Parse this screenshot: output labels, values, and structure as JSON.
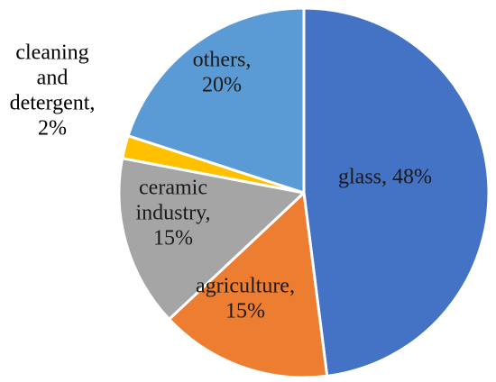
{
  "chart_data": {
    "type": "pie",
    "title": "",
    "start_angle_deg": 0,
    "direction": "clockwise",
    "slices": [
      {
        "label_lines": [
          "glass, 48%"
        ],
        "category": "glass",
        "value": 48,
        "color": "#4472C4"
      },
      {
        "label_lines": [
          "agriculture,",
          "15%"
        ],
        "category": "agriculture",
        "value": 15,
        "color": "#ED7D31"
      },
      {
        "label_lines": [
          "ceramic",
          "industry,",
          "15%"
        ],
        "category": "ceramic industry",
        "value": 15,
        "color": "#A5A5A5"
      },
      {
        "label_lines": [
          "cleaning",
          "and",
          "detergent,",
          "2%"
        ],
        "category": "cleaning and detergent",
        "value": 2,
        "color": "#FFC000"
      },
      {
        "label_lines": [
          "others,",
          "20%"
        ],
        "category": "others",
        "value": 20,
        "color": "#5B9BD5"
      }
    ]
  }
}
